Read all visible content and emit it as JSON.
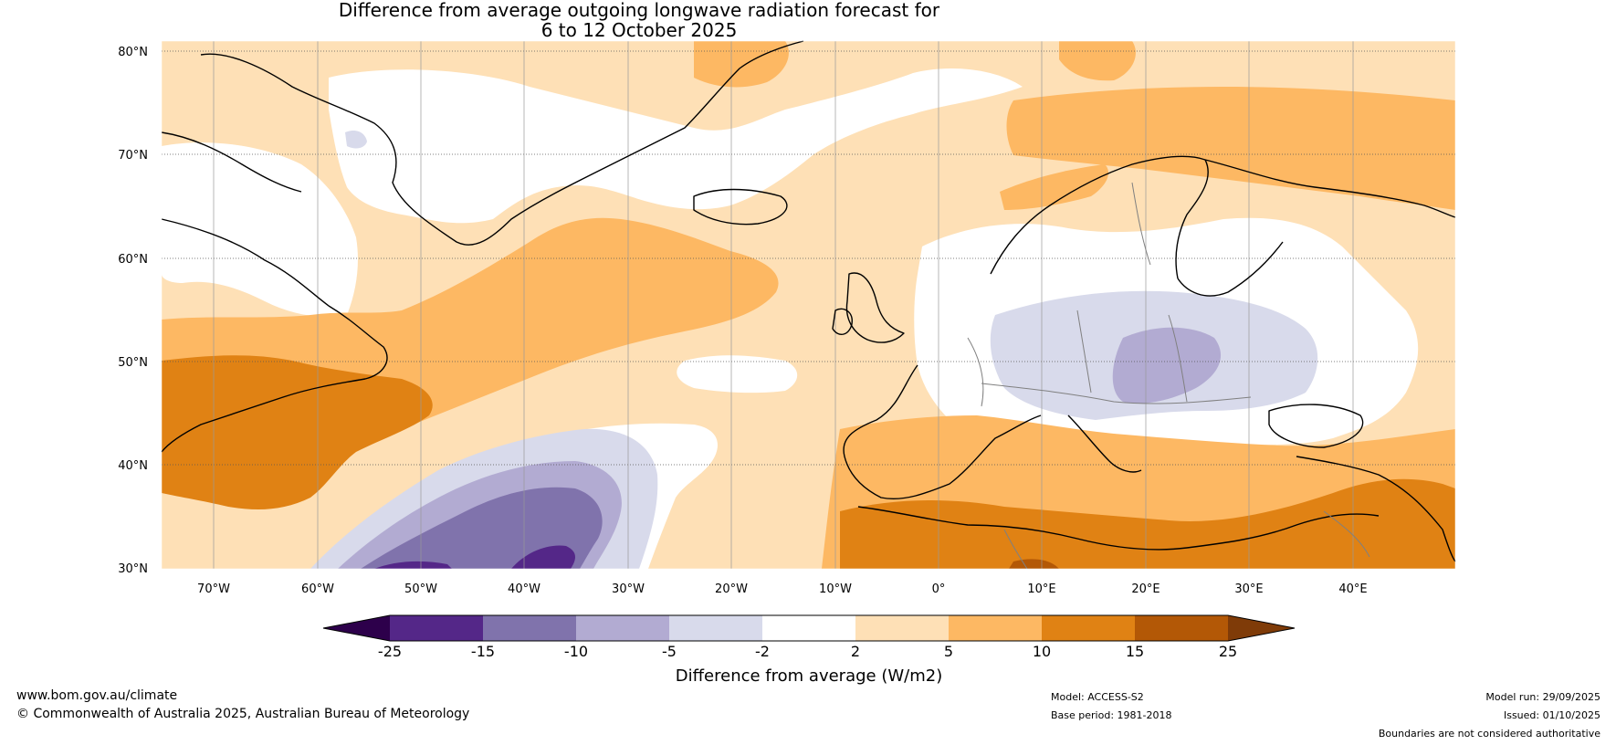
{
  "title": {
    "line1": "Difference from average outgoing longwave radiation forecast for",
    "line2": "6 to 12 October 2025"
  },
  "map": {
    "lat_labels": [
      "80°N",
      "70°N",
      "60°N",
      "50°N",
      "40°N",
      "30°N"
    ],
    "lon_labels": [
      "70°W",
      "60°W",
      "50°W",
      "40°W",
      "30°W",
      "20°W",
      "10°W",
      "0°",
      "10°E",
      "20°E",
      "30°E",
      "40°E"
    ],
    "colors": {
      "lt_neg25": "#2d004b",
      "neg25_neg15": "#542788",
      "neg15_neg10": "#8073ac",
      "neg10_neg5": "#b2abd2",
      "neg5_neg2": "#d8daeb",
      "neg2_2": "#ffffff",
      "p2_5": "#fee0b6",
      "p5_10": "#fdb863",
      "p10_15": "#e08214",
      "p15_25": "#b35806",
      "gt_25": "#7f3b08"
    }
  },
  "colorbar": {
    "ticks": [
      "-25",
      "-15",
      "-10",
      "-5",
      "-2",
      "2",
      "5",
      "10",
      "15",
      "25"
    ],
    "label": "Difference from average (W/m2)"
  },
  "footer": {
    "website": "www.bom.gov.au/climate",
    "copyright": "© Commonwealth of Australia 2025, Australian Bureau of Meteorology",
    "model": "Model: ACCESS-S2",
    "base_period": "Base period: 1981-2018",
    "model_run": "Model run: 29/09/2025",
    "issued": "Issued: 01/10/2025",
    "disclaimer": "Boundaries are not considered authoritative"
  }
}
